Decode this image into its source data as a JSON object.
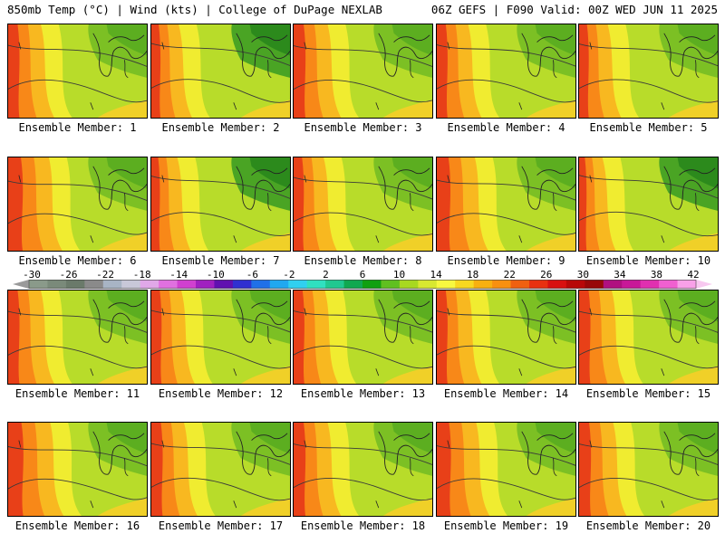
{
  "header": {
    "left": "850mb Temp (°C) | Wind (kts) | College of DuPage NEXLAB",
    "right": "06Z GEFS | F090 Valid: 00Z WED JUN 11 2025"
  },
  "colorbar": {
    "labels": [
      "-30",
      "-26",
      "-22",
      "-18",
      "-14",
      "-10",
      "-6",
      "-2",
      "2",
      "6",
      "10",
      "14",
      "18",
      "22",
      "26",
      "30",
      "34",
      "38",
      "42"
    ],
    "colors": [
      "#8a9a8a",
      "#7a8a7a",
      "#6a7a6a",
      "#8a8a8a",
      "#a8b4c4",
      "#c8c8d8",
      "#e0a8e8",
      "#e070e0",
      "#d040d0",
      "#a020c0",
      "#6010b0",
      "#3030d0",
      "#2070e8",
      "#20a8f0",
      "#30d0f0",
      "#30e0c0",
      "#20c890",
      "#10a850",
      "#10a010",
      "#60c020",
      "#a8d820",
      "#d8e830",
      "#f8f840",
      "#f8d820",
      "#f8b010",
      "#f89010",
      "#f06010",
      "#e83010",
      "#d81010",
      "#b80808",
      "#980808",
      "#b01080",
      "#c81898",
      "#e030b0",
      "#f060d0",
      "#f8a0e8"
    ],
    "arrow_left": "◄",
    "arrow_right": "►"
  },
  "members": [
    {
      "label": "Ensemble Member: 1"
    },
    {
      "label": "Ensemble Member: 2"
    },
    {
      "label": "Ensemble Member: 3"
    },
    {
      "label": "Ensemble Member: 4"
    },
    {
      "label": "Ensemble Member: 5"
    },
    {
      "label": "Ensemble Member: 6"
    },
    {
      "label": "Ensemble Member: 7"
    },
    {
      "label": "Ensemble Member: 8"
    },
    {
      "label": "Ensemble Member: 9"
    },
    {
      "label": "Ensemble Member: 10"
    },
    {
      "label": "Ensemble Member: 11"
    },
    {
      "label": "Ensemble Member: 12"
    },
    {
      "label": "Ensemble Member: 13"
    },
    {
      "label": "Ensemble Member: 14"
    },
    {
      "label": "Ensemble Member: 15"
    },
    {
      "label": "Ensemble Member: 16"
    },
    {
      "label": "Ensemble Member: 17"
    },
    {
      "label": "Ensemble Member: 18"
    },
    {
      "label": "Ensemble Member: 19"
    },
    {
      "label": "Ensemble Member: 20"
    }
  ]
}
